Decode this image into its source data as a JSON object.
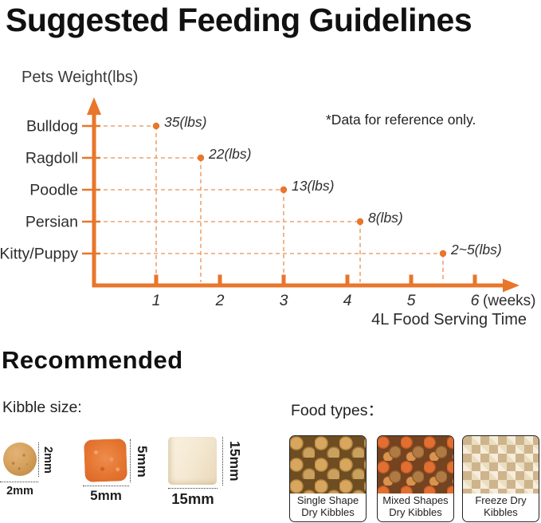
{
  "title": "Suggested Feeding Guidelines",
  "chart_data": {
    "type": "scatter",
    "title": "Pets Weight(lbs)",
    "note": "*Data for reference only.",
    "xlabel": "4L Food Serving Time",
    "x_unit": "(weeks)",
    "x_ticks": [
      1,
      2,
      3,
      4,
      5,
      6
    ],
    "xlim": [
      0,
      6.6
    ],
    "categories": [
      "Bulldog",
      "Ragdoll",
      "Poodle",
      "Persian",
      "Kitty/Puppy"
    ],
    "points": [
      {
        "category": "Bulldog",
        "weeks": 1,
        "weight_label": "35(lbs)",
        "weight_lbs": "35"
      },
      {
        "category": "Ragdoll",
        "weeks": 1.7,
        "weight_label": "22(lbs)",
        "weight_lbs": "22"
      },
      {
        "category": "Poodle",
        "weeks": 3,
        "weight_label": "13(lbs)",
        "weight_lbs": "13"
      },
      {
        "category": "Persian",
        "weeks": 4.2,
        "weight_label": "8(lbs)",
        "weight_lbs": "8"
      },
      {
        "category": "Kitty/Puppy",
        "weeks": 5.5,
        "weight_label": "2~5(lbs)",
        "weight_lbs": "2~5"
      }
    ],
    "grid": "dashed-droplines",
    "legend": "none",
    "axis_color": "#E8762B",
    "dash_color": "#ECA471",
    "point_color": "#E8762B"
  },
  "recommended": {
    "heading": "Recommended",
    "kibble_size_label": "Kibble size:",
    "kibbles": [
      {
        "name": "round-dry-kibble",
        "size": "2mm"
      },
      {
        "name": "square-dry-kibble",
        "size": "5mm"
      },
      {
        "name": "freeze-dry-cube",
        "size": "15mm"
      }
    ],
    "food_types_label": "Food types：",
    "food_types": [
      {
        "label": "Single Shape Dry Kibbles"
      },
      {
        "label": "Mixed Shapes Dry Kibbles"
      },
      {
        "label": "Freeze Dry Kibbles"
      }
    ]
  }
}
